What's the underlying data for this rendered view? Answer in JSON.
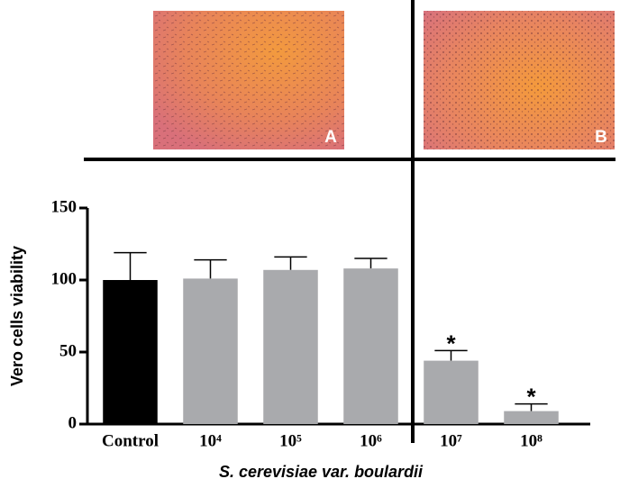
{
  "chart_data": {
    "type": "bar",
    "ylabel": "Vero cells viability",
    "xlabel": "S. cerevisiae var. boulardii",
    "panels": [
      "A",
      "B"
    ],
    "categories": [
      "Control",
      "10⁴",
      "10⁵",
      "10⁶",
      "10⁷",
      "10⁸"
    ],
    "values": [
      100,
      101,
      107,
      108,
      44,
      9
    ],
    "errors": [
      19,
      13,
      9,
      7,
      7,
      5
    ],
    "colors": [
      "#000000",
      "#a9aaad",
      "#a9aaad",
      "#a9aaad",
      "#a9aaad",
      "#a9aaad"
    ],
    "annotations": [
      {
        "text": "*",
        "category": "10⁷"
      },
      {
        "text": "*",
        "category": "10⁸"
      }
    ],
    "ylim": [
      0,
      150
    ],
    "yticks": [
      0,
      50,
      100,
      150
    ],
    "grid": false
  }
}
